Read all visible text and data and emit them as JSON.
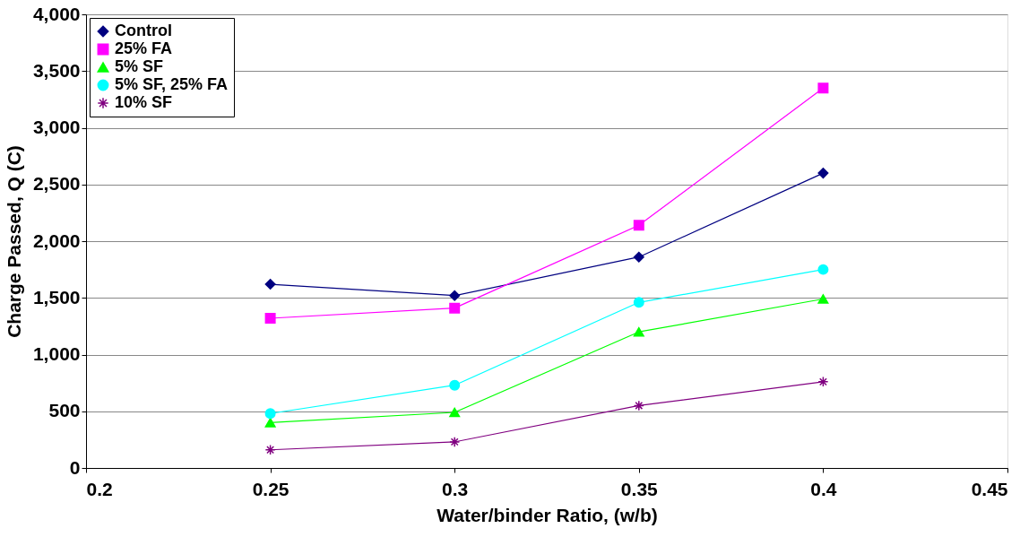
{
  "chart_data": {
    "type": "line",
    "xlabel": "Water/binder Ratio, (w/b)",
    "ylabel": "Charge Passed, Q (C)",
    "x": [
      0.25,
      0.3,
      0.35,
      0.4
    ],
    "series": [
      {
        "name": "Control",
        "color": "#000080",
        "marker": "diamond",
        "values": [
          1620,
          1520,
          1860,
          2600
        ]
      },
      {
        "name": "25% FA",
        "color": "#ff00ff",
        "marker": "square",
        "values": [
          1320,
          1410,
          2140,
          3350
        ]
      },
      {
        "name": "5% SF",
        "color": "#00ff00",
        "marker": "triangle",
        "values": [
          400,
          490,
          1200,
          1490
        ]
      },
      {
        "name": "5% SF, 25% FA",
        "color": "#00ffff",
        "marker": "circle",
        "values": [
          480,
          730,
          1460,
          1750
        ]
      },
      {
        "name": "10% SF",
        "color": "#800080",
        "marker": "cross",
        "values": [
          160,
          230,
          550,
          760
        ]
      }
    ],
    "xlim": [
      0.2,
      0.45
    ],
    "xticks": [
      0.2,
      0.25,
      0.3,
      0.35,
      0.4,
      0.45
    ],
    "ylim": [
      0,
      4000
    ],
    "yticks": [
      0,
      500,
      {
        "value": 1000,
        "label": "1,000"
      },
      {
        "value": 1500,
        "label": "1,500"
      },
      {
        "value": 2000,
        "label": "2,000"
      },
      {
        "value": 2500,
        "label": "2,500"
      },
      {
        "value": 3000,
        "label": "3,000"
      },
      {
        "value": 3500,
        "label": "3,500"
      },
      {
        "value": 4000,
        "label": "4,000"
      }
    ],
    "grid": "y",
    "legend": "top left",
    "line_style": "solid"
  }
}
